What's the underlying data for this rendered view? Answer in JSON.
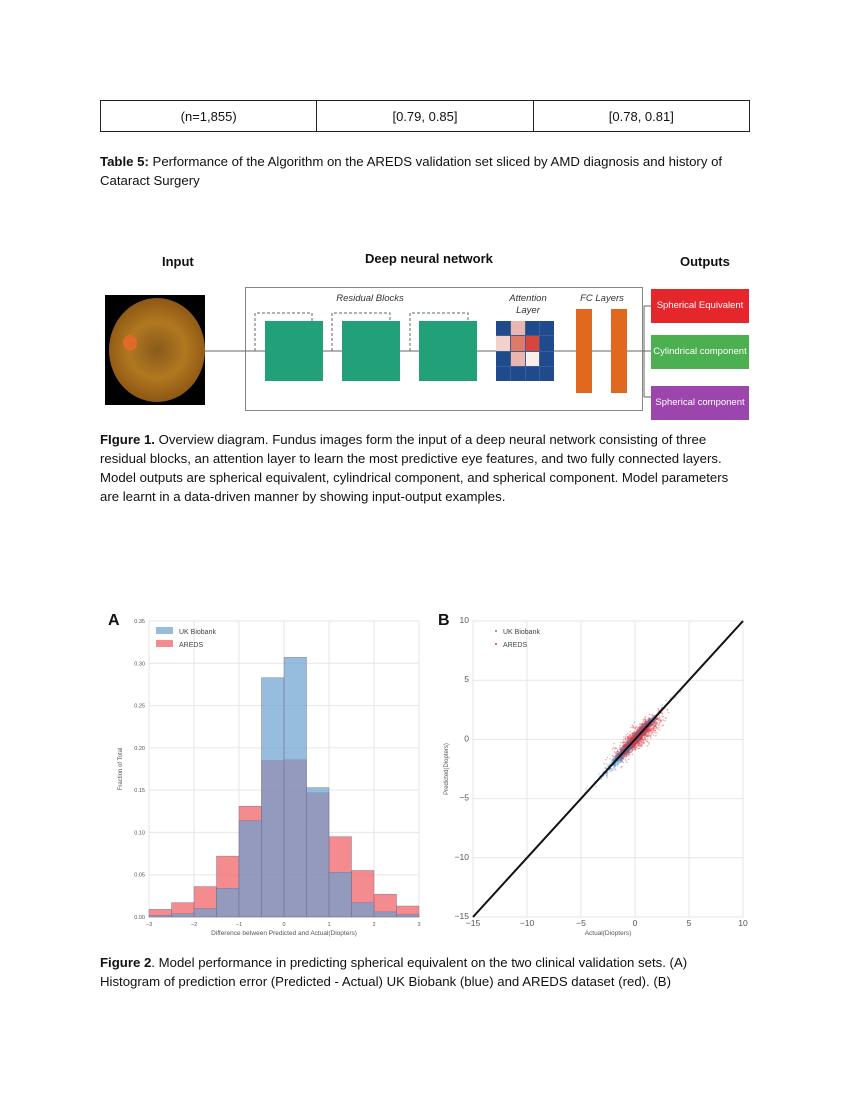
{
  "table": {
    "row": [
      "(n=1,855)",
      "[0.79, 0.85]",
      "[0.78, 0.81]"
    ]
  },
  "table_caption": {
    "label": "Table 5:",
    "text": " Performance of the Algorithm on the AREDS validation set sliced by AMD diagnosis and history of Cataract Surgery"
  },
  "diagram": {
    "input_heading": "Input",
    "network_heading": "Deep neural network",
    "outputs_heading": "Outputs",
    "residual_label": "Residual Blocks",
    "attention_label": "Attention Layer",
    "fc_label": "FC Layers",
    "outputs": [
      {
        "label": "Spherical Equivalent",
        "color": "#e5262b"
      },
      {
        "label": "Cylindrical component",
        "color": "#4caf50"
      },
      {
        "label": "Spherical component",
        "color": "#9c45ad"
      }
    ],
    "colors": {
      "residual": "#22a07a",
      "attention": "#1f4a8c",
      "fc": "#e0681f"
    }
  },
  "figure1_caption": {
    "label": "FIgure 1.",
    "text": " Overview diagram. Fundus images form the input of a deep neural network consisting of three residual blocks, an attention layer to learn the most predictive eye features, and two fully connected layers. Model outputs are spherical equivalent, cylindrical component, and spherical component. Model parameters are learnt in a data-driven manner by showing input-output examples."
  },
  "chart_data": [
    {
      "panel": "A",
      "type": "bar",
      "xlabel": "Difference between Predicted and Actual(Diopters)",
      "ylabel": "Fraction of Total",
      "xlim": [
        -3,
        3
      ],
      "ylim": [
        0,
        0.35
      ],
      "xticks": [
        "−3",
        "−2",
        "−1",
        "0",
        "1",
        "2",
        "3"
      ],
      "yticks": [
        "0.00",
        "0.05",
        "0.10",
        "0.15",
        "0.20",
        "0.25",
        "0.30",
        "0.35"
      ],
      "grid": true,
      "legend": "top-left",
      "bin_edges": [
        -3,
        -2.5,
        -2,
        -1.5,
        -1,
        -0.5,
        0,
        0.5,
        1,
        1.5,
        2,
        2.5,
        3
      ],
      "series": [
        {
          "name": "UK Biobank",
          "color": "#6a9fd0",
          "values": [
            0.002,
            0.004,
            0.01,
            0.034,
            0.114,
            0.283,
            0.307,
            0.153,
            0.053,
            0.017,
            0.006,
            0.003
          ]
        },
        {
          "name": "AREDS",
          "color": "#ef5b5f",
          "values": [
            0.009,
            0.017,
            0.036,
            0.072,
            0.131,
            0.185,
            0.186,
            0.147,
            0.095,
            0.055,
            0.027,
            0.013
          ]
        }
      ]
    },
    {
      "panel": "B",
      "type": "scatter",
      "xlabel": "Actual(Diopters)",
      "ylabel": "Predicted(Diopters)",
      "xlim": [
        -15,
        10
      ],
      "ylim": [
        -15,
        10
      ],
      "xticks": [
        "−15",
        "−10",
        "−5",
        "0",
        "5",
        "10"
      ],
      "yticks": [
        "−15",
        "−10",
        "−5",
        "0",
        "5",
        "10"
      ],
      "grid": true,
      "legend": "top-left",
      "identity_line": [
        [
          -15,
          -15
        ],
        [
          10,
          10
        ]
      ],
      "series": [
        {
          "name": "UK Biobank",
          "color": "#4a8ac8"
        },
        {
          "name": "AREDS",
          "color": "#e2343a"
        }
      ]
    }
  ],
  "figure2_caption": {
    "label": "Figure 2",
    "text": ". Model performance in predicting spherical equivalent on the two clinical validation sets. (A) Histogram of prediction error (Predicted - Actual) UK Biobank (blue) and AREDS dataset (red). (B)"
  }
}
